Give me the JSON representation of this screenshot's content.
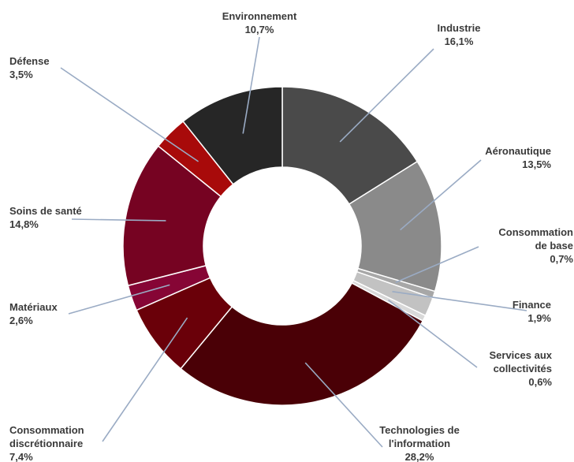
{
  "chart_data": {
    "type": "pie",
    "donut": true,
    "title": "",
    "legend": "none",
    "slices": [
      {
        "label": "Industrie",
        "value": 16.1,
        "value_text": "16,1%",
        "color": "#4a4a4a"
      },
      {
        "label": "Aéronautique",
        "value": 13.5,
        "value_text": "13,5%",
        "color": "#8a8a8a"
      },
      {
        "label": "Consommation de base",
        "value": 0.7,
        "value_text": "0,7%",
        "color": "#a7a7a7"
      },
      {
        "label": "Finance",
        "value": 1.9,
        "value_text": "1,9%",
        "color": "#c2c2c2"
      },
      {
        "label": "Services aux collectivités",
        "value": 0.6,
        "value_text": "0,6%",
        "color": "#d9d9d9"
      },
      {
        "label": "Technologies de l'information",
        "value": 28.2,
        "value_text": "28,2%",
        "color": "#4a0006"
      },
      {
        "label": "Consommation discrétionnaire",
        "value": 7.4,
        "value_text": "7,4%",
        "color": "#6a0009"
      },
      {
        "label": "Matériaux",
        "value": 2.6,
        "value_text": "2,6%",
        "color": "#860535"
      },
      {
        "label": "Soins de santé",
        "value": 14.8,
        "value_text": "14,8%",
        "color": "#760322"
      },
      {
        "label": "Défense",
        "value": 3.5,
        "value_text": "3,5%",
        "color": "#a80a0a"
      },
      {
        "label": "Environnement",
        "value": 10.7,
        "value_text": "10,7%",
        "color": "#262626"
      }
    ]
  }
}
